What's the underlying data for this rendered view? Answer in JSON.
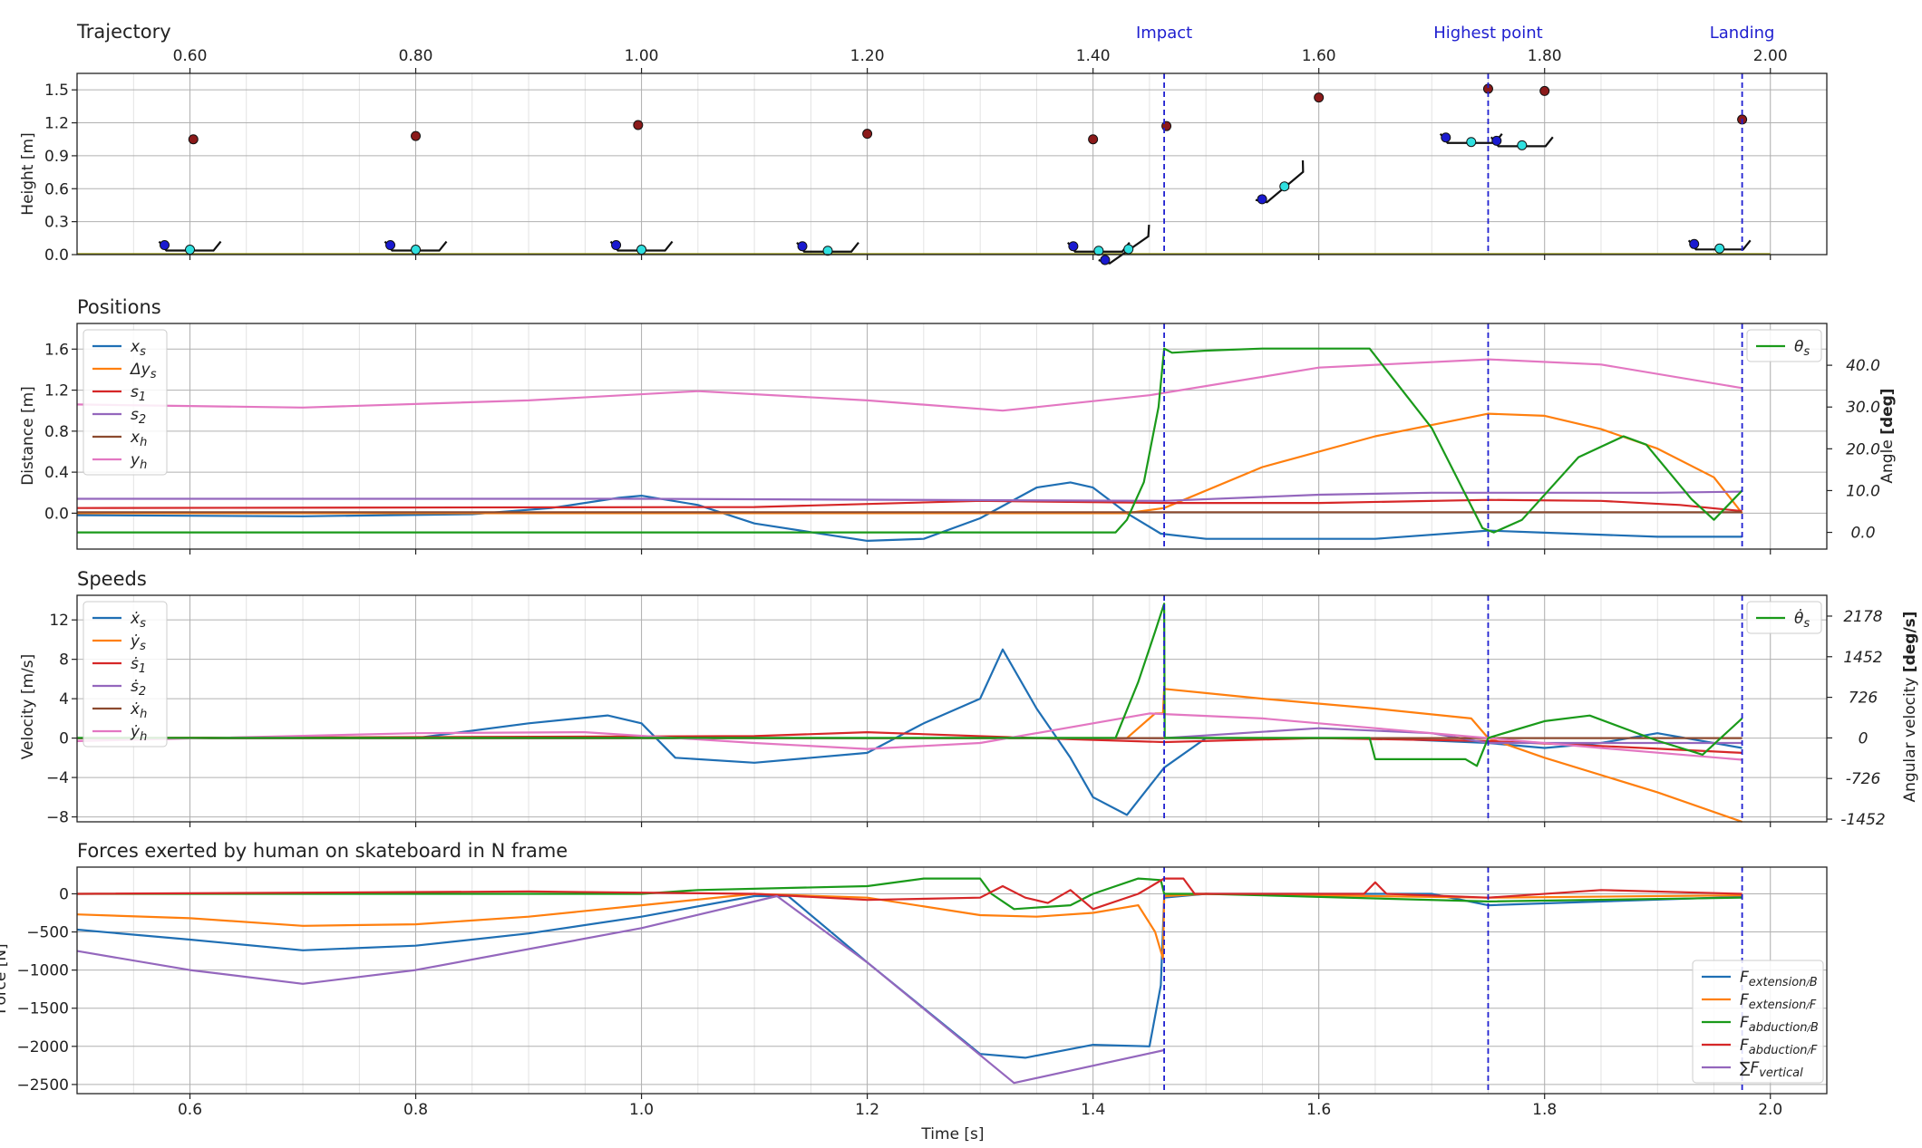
{
  "colors": {
    "blue": "#1f6fb4",
    "orange": "#ff7f0e",
    "green": "#1a9a1a",
    "red": "#d62728",
    "purple": "#9467bd",
    "brown": "#8c4a2f",
    "pink": "#e377c2",
    "event_line": "#2020d0"
  },
  "events": [
    {
      "label": "Impact",
      "t": 1.463
    },
    {
      "label": "Highest point",
      "t": 1.75
    },
    {
      "label": "Landing",
      "t": 1.975
    }
  ],
  "xaxis": {
    "xlim": [
      0.5,
      2.05
    ],
    "ticks": [
      0.6,
      0.8,
      1.0,
      1.2,
      1.4,
      1.6,
      1.8,
      2.0
    ],
    "bottom_tick_labels": [
      "0.6",
      "0.8",
      "1.0",
      "1.2",
      "1.4",
      "1.6",
      "1.8",
      "2.0"
    ],
    "top_tick_labels": [
      "0.60",
      "0.80",
      "1.00",
      "1.20",
      "1.40",
      "1.60",
      "1.80",
      "2.00"
    ],
    "xlabel": "Time [s]"
  },
  "chart_data": [
    {
      "type": "scatter",
      "title": "Trajectory",
      "ylabel": "Height [m]",
      "ylim": [
        0,
        1.65
      ],
      "yticks": [
        0.0,
        0.3,
        0.6,
        0.9,
        1.2,
        1.5
      ],
      "ytick_labels": [
        "0.0",
        "0.3",
        "0.6",
        "0.9",
        "1.2",
        "1.5"
      ],
      "grid": true,
      "human_markers": {
        "color": "#8b1a1a",
        "x": [
          0.603,
          0.8,
          0.997,
          1.2,
          1.4,
          1.465,
          1.6,
          1.75,
          1.8,
          1.975
        ],
        "y": [
          1.05,
          1.08,
          1.18,
          1.1,
          1.05,
          1.17,
          1.43,
          1.51,
          1.49,
          1.23
        ]
      },
      "skateboards": [
        {
          "x": 0.6,
          "y": 0.07,
          "angle_deg": 0
        },
        {
          "x": 0.8,
          "y": 0.07,
          "angle_deg": 0
        },
        {
          "x": 1.0,
          "y": 0.07,
          "angle_deg": 0
        },
        {
          "x": 1.165,
          "y": 0.06,
          "angle_deg": 0
        },
        {
          "x": 1.405,
          "y": 0.06,
          "angle_deg": 0
        },
        {
          "x": 1.43,
          "y": 0.07,
          "angle_deg": 35
        },
        {
          "x": 1.568,
          "y": 0.64,
          "angle_deg": 40
        },
        {
          "x": 1.735,
          "y": 1.05,
          "angle_deg": 0
        },
        {
          "x": 1.78,
          "y": 1.02,
          "angle_deg": 0
        },
        {
          "x": 1.955,
          "y": 0.08,
          "angle_deg": 0
        }
      ]
    },
    {
      "type": "line",
      "title": "Positions",
      "ylabel": "Distance [m]",
      "ylabel2_prefix": "Angle ",
      "ylabel2_bold": "[deg]",
      "ylim": [
        -0.35,
        1.85
      ],
      "yticks": [
        0.0,
        0.4,
        0.8,
        1.2,
        1.6
      ],
      "ytick_labels": [
        "0.0",
        "0.4",
        "0.8",
        "1.2",
        "1.6"
      ],
      "y2lim": [
        -4,
        50
      ],
      "y2ticks": [
        0,
        10,
        20,
        30,
        40
      ],
      "y2tick_labels": [
        "0.0",
        "10.0",
        "20.0",
        "30.0",
        "40.0"
      ],
      "grid": true,
      "legend_position": "upper-left",
      "legend2_position": "upper-right",
      "series": [
        {
          "name": "x_s",
          "label_html": "x<tspan font-size='13px' dy='4'>s</tspan>",
          "color": "#1f6fb4",
          "x": [
            0.5,
            0.7,
            0.85,
            0.92,
            0.98,
            1.0,
            1.05,
            1.1,
            1.2,
            1.25,
            1.3,
            1.35,
            1.38,
            1.4,
            1.43,
            1.46,
            1.5,
            1.65,
            1.75,
            1.8,
            1.9,
            1.975
          ],
          "y": [
            -0.02,
            -0.03,
            -0.01,
            0.05,
            0.15,
            0.17,
            0.08,
            -0.1,
            -0.27,
            -0.25,
            -0.05,
            0.25,
            0.3,
            0.25,
            0.0,
            -0.2,
            -0.25,
            -0.25,
            -0.17,
            -0.19,
            -0.23,
            -0.23
          ]
        },
        {
          "name": "Δy_s",
          "label_html": "Δy<tspan font-size='13px' dy='4'>s</tspan>",
          "color": "#ff7f0e",
          "x": [
            0.5,
            1.43,
            1.463,
            1.55,
            1.65,
            1.75,
            1.8,
            1.85,
            1.9,
            1.95,
            1.975
          ],
          "y": [
            0.0,
            0.0,
            0.05,
            0.45,
            0.75,
            0.97,
            0.95,
            0.82,
            0.63,
            0.35,
            0.0
          ]
        },
        {
          "name": "s_1",
          "label_html": "s<tspan font-size='13px' dy='4'>1</tspan>",
          "color": "#d62728",
          "x": [
            0.5,
            1.1,
            1.3,
            1.463,
            1.6,
            1.75,
            1.85,
            1.92,
            1.975
          ],
          "y": [
            0.05,
            0.06,
            0.12,
            0.1,
            0.1,
            0.13,
            0.12,
            0.08,
            0.02
          ]
        },
        {
          "name": "s_2",
          "label_html": "s<tspan font-size='13px' dy='4'>2</tspan>",
          "color": "#9467bd",
          "x": [
            0.5,
            1.0,
            1.463,
            1.6,
            1.7,
            1.9,
            1.975
          ],
          "y": [
            0.14,
            0.14,
            0.12,
            0.18,
            0.2,
            0.2,
            0.21
          ]
        },
        {
          "name": "x_h",
          "label_html": "x<tspan font-size='13px' dy='4'>h</tspan>",
          "color": "#8c4a2f",
          "x": [
            0.5,
            1.975
          ],
          "y": [
            0.01,
            0.01
          ]
        },
        {
          "name": "y_h",
          "label_html": "y<tspan font-size='13px' dy='4'>h</tspan>",
          "color": "#e377c2",
          "x": [
            0.5,
            0.7,
            0.9,
            1.05,
            1.2,
            1.32,
            1.45,
            1.6,
            1.75,
            1.85,
            1.975
          ],
          "y": [
            1.06,
            1.03,
            1.1,
            1.19,
            1.1,
            1.0,
            1.15,
            1.42,
            1.5,
            1.45,
            1.22
          ]
        }
      ],
      "series_right": [
        {
          "name": "θ_s",
          "label_html": "θ<tspan font-size='13px' dy='4'>s</tspan>",
          "color": "#1a9a1a",
          "x": [
            0.5,
            1.42,
            1.43,
            1.445,
            1.458,
            1.463,
            1.47,
            1.5,
            1.55,
            1.645,
            1.7,
            1.745,
            1.755,
            1.78,
            1.83,
            1.87,
            1.89,
            1.93,
            1.95,
            1.975
          ],
          "y": [
            0,
            0,
            3,
            12,
            30,
            44,
            43,
            43.5,
            44,
            44,
            25,
            1,
            0,
            3,
            18,
            23,
            21,
            8,
            3,
            10
          ]
        }
      ]
    },
    {
      "type": "line",
      "title": "Speeds",
      "ylabel": "Velocity [m/s]",
      "ylabel2_prefix": "Angular velocity ",
      "ylabel2_bold": "[deg/s]",
      "ylim": [
        -8.5,
        14.5
      ],
      "yticks": [
        -8,
        -4,
        0,
        4,
        8,
        12
      ],
      "ytick_labels": [
        "−8",
        "−4",
        "0",
        "4",
        "8",
        "12"
      ],
      "y2lim": [
        -1500,
        2550
      ],
      "y2ticks": [
        -1452,
        -726,
        0,
        726,
        1452,
        2178
      ],
      "y2tick_labels": [
        "-1452",
        "-726",
        "0",
        "726",
        "1452",
        "2178"
      ],
      "grid": true,
      "legend_position": "upper-left",
      "legend2_position": "upper-right",
      "series": [
        {
          "name": "ẋ_s",
          "label_html": "ẋ<tspan font-size='13px' dy='4'>s</tspan>",
          "color": "#1f6fb4",
          "x": [
            0.5,
            0.8,
            0.9,
            0.97,
            1.0,
            1.03,
            1.1,
            1.2,
            1.25,
            1.3,
            1.32,
            1.35,
            1.38,
            1.4,
            1.43,
            1.463,
            1.5,
            1.6,
            1.65,
            1.75,
            1.8,
            1.85,
            1.9,
            1.975
          ],
          "y": [
            0,
            0,
            1.5,
            2.3,
            1.5,
            -2,
            -2.5,
            -1.5,
            1.5,
            4,
            9,
            3,
            -2,
            -6,
            -7.8,
            -3,
            0,
            0,
            0,
            -0.5,
            -1,
            -0.5,
            0.5,
            -1
          ]
        },
        {
          "name": "ẏ_s",
          "label_html": "ẏ<tspan font-size='13px' dy='4'>s</tspan>",
          "color": "#ff7f0e",
          "x": [
            0.5,
            1.43,
            1.455,
            1.462,
            1.463,
            1.55,
            1.65,
            1.735,
            1.75,
            1.8,
            1.9,
            1.975
          ],
          "y": [
            0,
            0,
            2.5,
            2.5,
            5,
            4,
            3,
            2,
            0,
            -2,
            -5.5,
            -8.5
          ]
        },
        {
          "name": "ṡ_1",
          "label_html": "ṡ<tspan font-size='13px' dy='4'>1</tspan>",
          "color": "#d62728",
          "x": [
            0.5,
            1.1,
            1.2,
            1.35,
            1.463,
            1.6,
            1.75,
            1.85,
            1.975
          ],
          "y": [
            0,
            0.2,
            0.6,
            0,
            -0.4,
            0,
            -0.3,
            -0.8,
            -1.5
          ]
        },
        {
          "name": "ṡ_2",
          "label_html": "ṡ<tspan font-size='13px' dy='4'>2</tspan>",
          "color": "#9467bd",
          "x": [
            0.5,
            1.463,
            1.6,
            1.7,
            1.75,
            1.85,
            1.975
          ],
          "y": [
            0,
            0,
            1,
            0.5,
            -0.5,
            -0.5,
            -0.5
          ]
        },
        {
          "name": "ẋ_h",
          "label_html": "ẋ<tspan font-size='13px' dy='4'>h</tspan>",
          "color": "#8c4a2f",
          "x": [
            0.5,
            1.975
          ],
          "y": [
            0,
            0
          ]
        },
        {
          "name": "ẏ_h",
          "label_html": "ẏ<tspan font-size='13px' dy='4'>h</tspan>",
          "color": "#e377c2",
          "x": [
            0.5,
            0.8,
            0.95,
            1.1,
            1.2,
            1.3,
            1.45,
            1.55,
            1.65,
            1.75,
            1.85,
            1.975
          ],
          "y": [
            -0.3,
            0.5,
            0.6,
            -0.5,
            -1.1,
            -0.5,
            2.5,
            2,
            1,
            0,
            -1,
            -2.2
          ]
        }
      ],
      "series_right": [
        {
          "name": "θ̇_s",
          "label_html": "θ̇<tspan font-size='13px' dy='4'>s</tspan>",
          "color": "#1a9a1a",
          "x": [
            0.5,
            1.42,
            1.44,
            1.455,
            1.463,
            1.4635,
            1.5,
            1.645,
            1.65,
            1.73,
            1.74,
            1.75,
            1.8,
            1.84,
            1.9,
            1.94,
            1.975
          ],
          "y": [
            0,
            0,
            1000,
            1900,
            2400,
            0,
            0,
            0,
            -380,
            -380,
            -500,
            0,
            300,
            400,
            -50,
            -300,
            350
          ]
        }
      ]
    },
    {
      "type": "line",
      "title": "Forces exerted by human on skateboard in N frame",
      "ylabel": "Force [N]",
      "ylim": [
        -2620,
        350
      ],
      "yticks": [
        -2500,
        -2000,
        -1500,
        -1000,
        -500,
        0
      ],
      "ytick_labels": [
        "−2500",
        "−2000",
        "−1500",
        "−1000",
        "−500",
        "0"
      ],
      "grid": true,
      "legend_position": "lower-right",
      "series": [
        {
          "name": "F_extension B",
          "label_html": "F<tspan font-size='13px' dy='4'>extension</tspan><tspan font-size='10px'>/</tspan><tspan font-size='13px'>B</tspan>",
          "color": "#1f6fb4",
          "x": [
            0.5,
            0.6,
            0.7,
            0.8,
            0.9,
            1.0,
            1.1,
            1.13,
            1.2,
            1.3,
            1.34,
            1.4,
            1.45,
            1.46,
            1.463,
            1.5,
            1.7,
            1.75,
            1.975
          ],
          "y": [
            -470,
            -600,
            -740,
            -680,
            -520,
            -300,
            -30,
            -30,
            -900,
            -2100,
            -2150,
            -1980,
            -2000,
            -1200,
            -50,
            0,
            0,
            -150,
            -40
          ]
        },
        {
          "name": "F_extension F",
          "label_html": "F<tspan font-size='13px' dy='4'>extension</tspan><tspan font-size='10px'>/</tspan><tspan font-size='13px'>F</tspan>",
          "color": "#ff7f0e",
          "x": [
            0.5,
            0.6,
            0.7,
            0.8,
            0.9,
            1.0,
            1.1,
            1.2,
            1.3,
            1.35,
            1.4,
            1.44,
            1.455,
            1.462,
            1.463,
            1.5,
            1.75,
            1.975
          ],
          "y": [
            -270,
            -320,
            -420,
            -400,
            -300,
            -150,
            0,
            -50,
            -280,
            -300,
            -250,
            -150,
            -500,
            -850,
            -30,
            0,
            -50,
            -20
          ]
        },
        {
          "name": "F_abduction B",
          "label_html": "F<tspan font-size='13px' dy='4'>abduction</tspan><tspan font-size='10px'>/</tspan><tspan font-size='13px'>B</tspan>",
          "color": "#1a9a1a",
          "x": [
            0.5,
            1.0,
            1.05,
            1.2,
            1.25,
            1.3,
            1.31,
            1.33,
            1.38,
            1.4,
            1.44,
            1.46,
            1.463,
            1.5,
            1.75,
            1.975
          ],
          "y": [
            0,
            0,
            50,
            100,
            200,
            200,
            0,
            -200,
            -150,
            0,
            200,
            180,
            0,
            0,
            -100,
            -50
          ]
        },
        {
          "name": "F_abduction F",
          "label_html": "F<tspan font-size='13px' dy='4'>abduction</tspan><tspan font-size='10px'>/</tspan><tspan font-size='13px'>F</tspan>",
          "color": "#d62728",
          "x": [
            0.5,
            0.9,
            1.1,
            1.2,
            1.3,
            1.32,
            1.34,
            1.36,
            1.38,
            1.4,
            1.44,
            1.463,
            1.48,
            1.49,
            1.5,
            1.64,
            1.65,
            1.66,
            1.75,
            1.85,
            1.975
          ],
          "y": [
            0,
            30,
            0,
            -80,
            -50,
            100,
            -50,
            -120,
            50,
            -200,
            0,
            200,
            200,
            0,
            0,
            0,
            150,
            0,
            -50,
            50,
            0
          ]
        },
        {
          "name": "∑F_vertical",
          "label_html": "∑F<tspan font-size='13px' dy='4'>vertical</tspan>",
          "color": "#9467bd",
          "x": [
            0.5,
            0.6,
            0.7,
            0.8,
            1.0,
            1.12,
            1.2,
            1.33,
            1.463
          ],
          "y": [
            -750,
            -1000,
            -1180,
            -1000,
            -450,
            -30,
            -900,
            -2480,
            -2050
          ]
        }
      ]
    }
  ]
}
